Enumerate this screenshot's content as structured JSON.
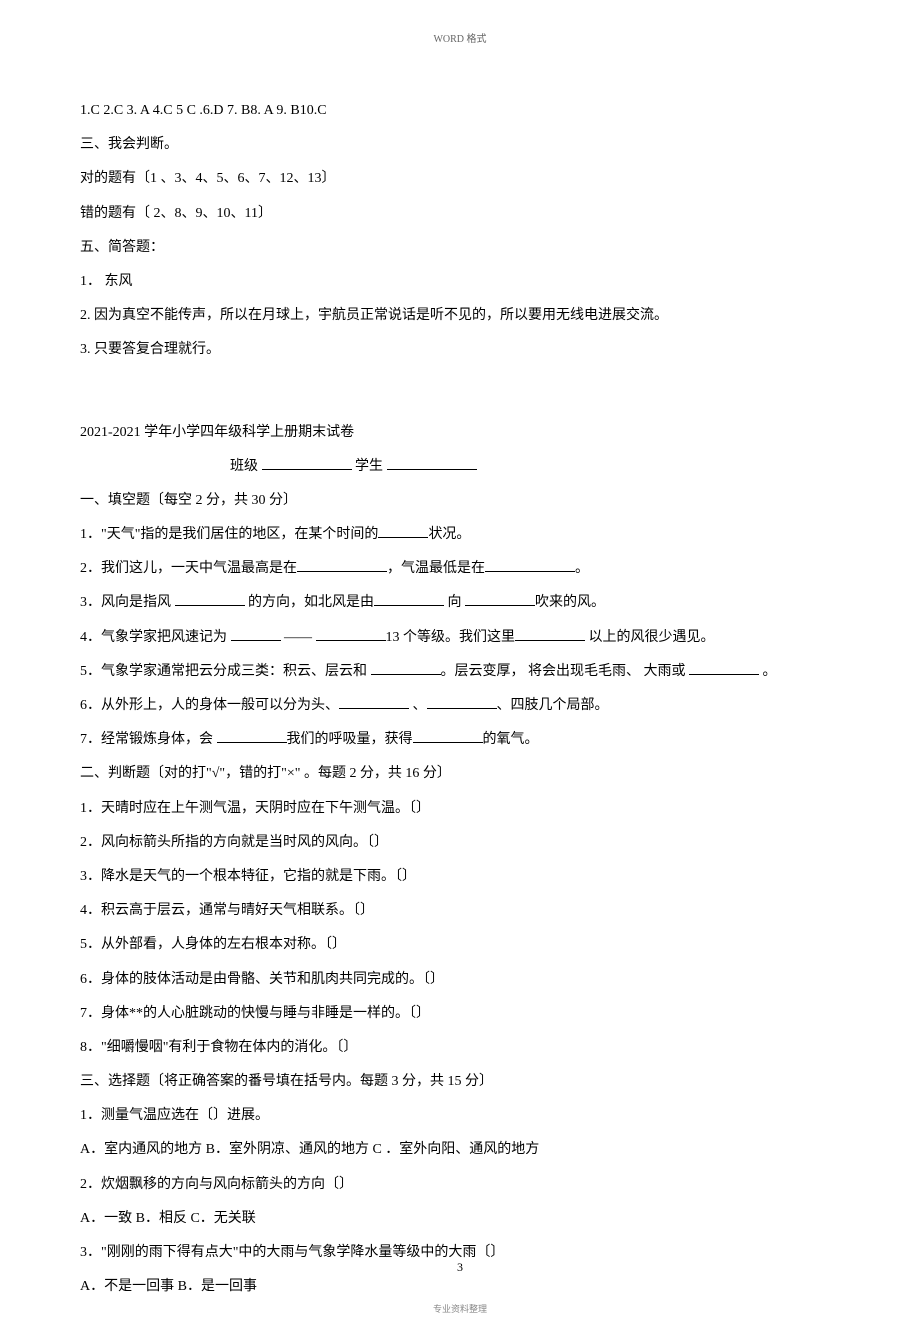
{
  "header": "WORD 格式",
  "answers_section": {
    "mc_answers": "1.C  2.C  3. A   4.C   5 C   .6.D   7. B8. A        9. B10.C",
    "section3_title": "三、我会判断。",
    "correct_items": "对的题有〔1 、3、4、5、6、7、12、13〕",
    "wrong_items": "错的题有〔 2、8、9、10、11〕",
    "section5_title": "五、简答题：",
    "answer1": "1． 东风",
    "answer2": "2. 因为真空不能传声，所以在月球上，宇航员正常说话是听不见的，所以要用无线电进展交流。",
    "answer3": "3. 只要答复合理就行。"
  },
  "exam": {
    "title": "2021-2021 学年小学四年级科学上册期末试卷",
    "class_label": "班级",
    "student_label": "学生",
    "section1_title": "一、填空题〔每空 2 分，共  30 分〕",
    "q1_1_pre": "1．\"天气\"指的是我们居住的地区，在某个时间的",
    "q1_1_post": "状况。",
    "q1_2_pre": "2．我们这儿，一天中气温最高是在",
    "q1_2_mid": "，气温最低是在",
    "q1_2_post": "。",
    "q1_3_pre": "3．风向是指风 ",
    "q1_3_mid1": " 的方向，如北风是由",
    "q1_3_mid2": " 向 ",
    "q1_3_post": "吹来的风。",
    "q1_4_pre": "4．气象学家把风速记为    ",
    "q1_4_mid1": " ——  ",
    "q1_4_mid2": "13 个等级。我们这里",
    "q1_4_post": " 以上的风很少遇见。",
    "q1_5_pre": "5．气象学家通常把云分成三类：积云、层云和 ",
    "q1_5_mid": "。层云变厚， 将会出现毛毛雨、 大雨或 ",
    "q1_5_post": " 。",
    "q1_6_pre": "6．从外形上，人的身体一般可以分为头、",
    "q1_6_mid": " 、",
    "q1_6_post": "、四肢几个局部。",
    "q1_7_pre": "7．经常锻炼身体，会    ",
    "q1_7_mid": "我们的呼吸量，获得",
    "q1_7_post": "的氧气。",
    "section2_title": "二、判断题〔对的打\"√\"，错的打\"×\" 。每题 2 分，共  16 分〕",
    "q2_1": "1．天晴时应在上午测气温，天阴时应在下午测气温。〔〕",
    "q2_2": "2．风向标箭头所指的方向就是当时风的风向。〔〕",
    "q2_3": "3．降水是天气的一个根本特征，它指的就是下雨。〔〕",
    "q2_4": "4．积云高于层云，通常与晴好天气相联系。〔〕",
    "q2_5": "5．从外部看，人身体的左右根本对称。〔〕",
    "q2_6": "6．身体的肢体活动是由骨骼、关节和肌肉共同完成的。〔〕",
    "q2_7": "7．身体**的人心脏跳动的快慢与睡与非睡是一样的。〔〕",
    "q2_8": "8．\"细嚼慢咽\"有利于食物在体内的消化。〔〕",
    "section3_title": "三、选择题〔将正确答案的番号填在括号内。每题          3 分，共  15 分〕",
    "q3_1": "1．测量气温应选在〔〕进展。",
    "q3_1_opts": "A．室内通风的地方 B．室外阴凉、通风的地方 C  ．室外向阳、通风的地方",
    "q3_2": "2．炊烟飘移的方向与风向标箭头的方向〔〕",
    "q3_2_opts": "A．一致 B．相反 C．无关联",
    "q3_3": "3．\"刚刚的雨下得有点大\"中的大雨与气象学降水量等级中的大雨〔〕",
    "q3_3_opts": "A．不是一回事 B．是一回事"
  },
  "page_number": "3",
  "footer": "专业资料整理"
}
